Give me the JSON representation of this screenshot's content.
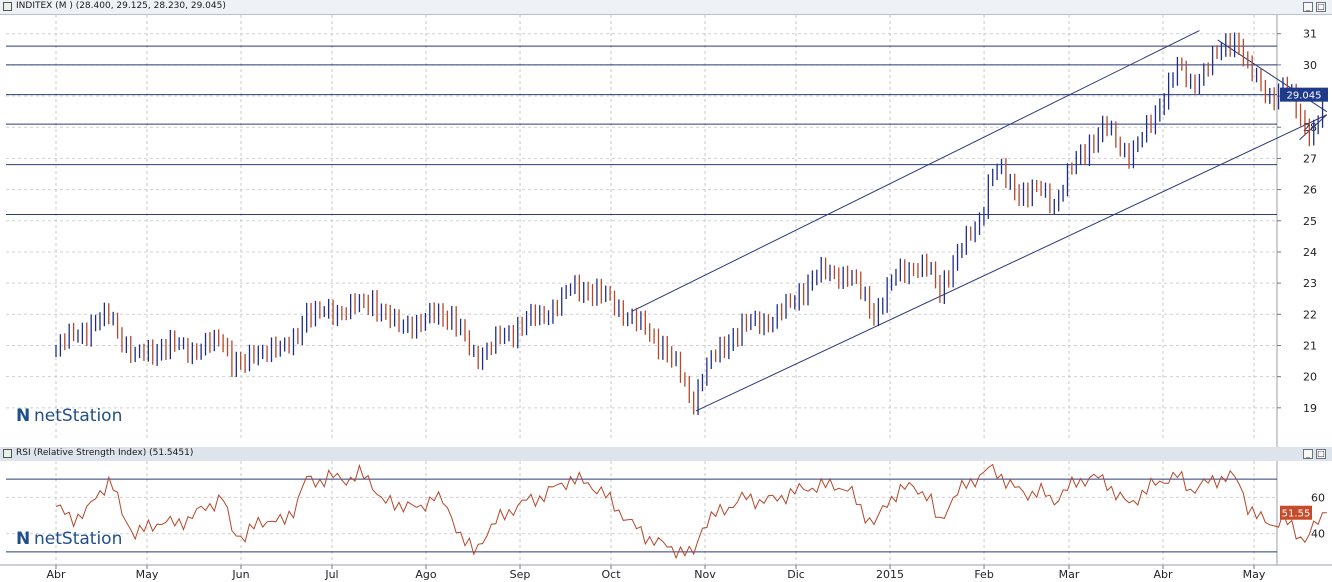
{
  "main_panel": {
    "title": "INDITEX (M ) (28.400, 29.125, 28.230, 29.045)",
    "price_badge": "29.045",
    "watermark": "netStation",
    "colors": {
      "up": "#1f2d8a",
      "down": "#b5472a",
      "hline": "#2b3a7a",
      "badge_bg": "#1f3a8a"
    }
  },
  "rsi_panel": {
    "title": "RSI (Relative Strength Index) (51.5451)",
    "value_badge": "51.55",
    "watermark": "netStation",
    "colors": {
      "line": "#b5472a",
      "badge_bg": "#c64b2a"
    }
  },
  "chart_data": [
    {
      "type": "candlestick",
      "title": "INDITEX (M ) (28.400, 29.125, 28.230, 29.045)",
      "ylim": [
        18,
        31.6
      ],
      "y_ticks": [
        19,
        20,
        21,
        22,
        23,
        24,
        25,
        26,
        27,
        28,
        29,
        30,
        31
      ],
      "x_labels": [
        "Abr",
        "May",
        "Jun",
        "Jul",
        "Ago",
        "Sep",
        "Oct",
        "Nov",
        "Dic",
        "2015",
        "Feb",
        "Mar",
        "Abr",
        "May"
      ],
      "x_label_days": [
        0,
        30,
        61,
        91,
        122,
        153,
        183,
        214,
        244,
        275,
        306,
        334,
        365,
        395
      ],
      "last_close": 29.045,
      "horizontal_lines": [
        30.6,
        30.0,
        29.045,
        28.1,
        26.8,
        25.2
      ],
      "trendlines": [
        {
          "name": "channel-upper",
          "from": [
            190,
            22.1
          ],
          "to": [
            377,
            31.1
          ]
        },
        {
          "name": "channel-lower",
          "from": [
            211,
            18.9
          ],
          "to": [
            419,
            28.4
          ]
        },
        {
          "name": "wedge-top",
          "from": [
            383,
            30.8
          ],
          "to": [
            419,
            28.5
          ]
        },
        {
          "name": "wedge-bottom",
          "from": [
            410,
            27.6
          ],
          "to": [
            419,
            28.4
          ]
        }
      ],
      "close_path": [
        [
          0,
          20.9
        ],
        [
          5,
          21.3
        ],
        [
          10,
          21.5
        ],
        [
          15,
          21.8
        ],
        [
          18,
          22.0
        ],
        [
          22,
          21.2
        ],
        [
          26,
          20.6
        ],
        [
          30,
          20.8
        ],
        [
          35,
          20.9
        ],
        [
          40,
          21.0
        ],
        [
          45,
          20.9
        ],
        [
          50,
          21.0
        ],
        [
          55,
          21.2
        ],
        [
          58,
          20.5
        ],
        [
          62,
          20.3
        ],
        [
          66,
          20.8
        ],
        [
          70,
          21.0
        ],
        [
          75,
          20.8
        ],
        [
          79,
          21.3
        ],
        [
          82,
          22.0
        ],
        [
          86,
          21.9
        ],
        [
          90,
          22.2
        ],
        [
          95,
          22.1
        ],
        [
          100,
          22.3
        ],
        [
          104,
          22.5
        ],
        [
          108,
          21.9
        ],
        [
          112,
          21.7
        ],
        [
          116,
          21.8
        ],
        [
          120,
          21.6
        ],
        [
          125,
          22.1
        ],
        [
          130,
          21.9
        ],
        [
          134,
          21.3
        ],
        [
          138,
          20.7
        ],
        [
          142,
          20.9
        ],
        [
          146,
          21.2
        ],
        [
          150,
          21.4
        ],
        [
          155,
          21.8
        ],
        [
          160,
          21.9
        ],
        [
          165,
          22.4
        ],
        [
          170,
          22.8
        ],
        [
          175,
          22.8
        ],
        [
          180,
          22.6
        ],
        [
          186,
          22.2
        ],
        [
          190,
          21.9
        ],
        [
          195,
          21.4
        ],
        [
          200,
          21.0
        ],
        [
          205,
          20.2
        ],
        [
          210,
          19.2
        ],
        [
          213,
          20.1
        ],
        [
          217,
          20.6
        ],
        [
          222,
          21.2
        ],
        [
          227,
          21.6
        ],
        [
          232,
          21.8
        ],
        [
          237,
          21.9
        ],
        [
          242,
          22.3
        ],
        [
          247,
          22.9
        ],
        [
          252,
          23.3
        ],
        [
          257,
          23.4
        ],
        [
          262,
          23.2
        ],
        [
          266,
          22.6
        ],
        [
          270,
          22.0
        ],
        [
          274,
          22.7
        ],
        [
          278,
          23.4
        ],
        [
          283,
          23.6
        ],
        [
          288,
          23.4
        ],
        [
          291,
          22.7
        ],
        [
          295,
          23.5
        ],
        [
          300,
          24.3
        ],
        [
          305,
          25.2
        ],
        [
          308,
          26.5
        ],
        [
          311,
          26.6
        ],
        [
          315,
          26.1
        ],
        [
          320,
          25.8
        ],
        [
          325,
          26.0
        ],
        [
          329,
          25.6
        ],
        [
          333,
          26.3
        ],
        [
          337,
          27.0
        ],
        [
          342,
          27.6
        ],
        [
          346,
          28.0
        ],
        [
          350,
          27.5
        ],
        [
          354,
          27.2
        ],
        [
          358,
          27.6
        ],
        [
          362,
          28.3
        ],
        [
          366,
          29.2
        ],
        [
          370,
          29.9
        ],
        [
          374,
          29.4
        ],
        [
          378,
          29.8
        ],
        [
          383,
          30.3
        ],
        [
          387,
          30.8
        ],
        [
          390,
          30.7
        ],
        [
          393,
          29.8
        ],
        [
          397,
          29.4
        ],
        [
          401,
          29.0
        ],
        [
          405,
          29.3
        ],
        [
          409,
          28.6
        ],
        [
          412,
          28.0
        ],
        [
          415,
          27.8
        ],
        [
          419,
          29.045
        ]
      ]
    },
    {
      "type": "line",
      "title": "RSI (Relative Strength Index) (51.5451)",
      "ylim": [
        25,
        80
      ],
      "y_ticks": [
        40,
        60
      ],
      "guide_levels": [
        30,
        70
      ],
      "last_value": 51.55,
      "series": [
        {
          "values": [
            [
              0,
              55
            ],
            [
              5,
              48
            ],
            [
              10,
              52
            ],
            [
              14,
              62
            ],
            [
              18,
              70
            ],
            [
              22,
              50
            ],
            [
              26,
              40
            ],
            [
              30,
              43
            ],
            [
              35,
              47
            ],
            [
              40,
              45
            ],
            [
              45,
              50
            ],
            [
              50,
              55
            ],
            [
              55,
              60
            ],
            [
              58,
              42
            ],
            [
              62,
              38
            ],
            [
              66,
              45
            ],
            [
              70,
              48
            ],
            [
              75,
              46
            ],
            [
              79,
              55
            ],
            [
              82,
              70
            ],
            [
              86,
              68
            ],
            [
              90,
              72
            ],
            [
              95,
              69
            ],
            [
              100,
              73
            ],
            [
              104,
              68
            ],
            [
              108,
              58
            ],
            [
              112,
              55
            ],
            [
              116,
              57
            ],
            [
              120,
              52
            ],
            [
              125,
              63
            ],
            [
              130,
              50
            ],
            [
              134,
              38
            ],
            [
              138,
              29
            ],
            [
              142,
              41
            ],
            [
              146,
              48
            ],
            [
              150,
              53
            ],
            [
              155,
              58
            ],
            [
              160,
              60
            ],
            [
              165,
              66
            ],
            [
              170,
              70
            ],
            [
              175,
              68
            ],
            [
              180,
              63
            ],
            [
              186,
              52
            ],
            [
              190,
              45
            ],
            [
              195,
              38
            ],
            [
              200,
              34
            ],
            [
              205,
              31
            ],
            [
              210,
              28
            ],
            [
              213,
              44
            ],
            [
              217,
              50
            ],
            [
              222,
              55
            ],
            [
              227,
              60
            ],
            [
              232,
              58
            ],
            [
              237,
              59
            ],
            [
              242,
              62
            ],
            [
              247,
              65
            ],
            [
              252,
              66
            ],
            [
              257,
              67
            ],
            [
              262,
              63
            ],
            [
              266,
              52
            ],
            [
              270,
              45
            ],
            [
              274,
              57
            ],
            [
              278,
              64
            ],
            [
              283,
              66
            ],
            [
              288,
              60
            ],
            [
              291,
              45
            ],
            [
              295,
              58
            ],
            [
              300,
              67
            ],
            [
              305,
              72
            ],
            [
              308,
              76
            ],
            [
              311,
              73
            ],
            [
              315,
              66
            ],
            [
              320,
              62
            ],
            [
              325,
              63
            ],
            [
              329,
              58
            ],
            [
              333,
              64
            ],
            [
              337,
              69
            ],
            [
              342,
              71
            ],
            [
              346,
              69
            ],
            [
              350,
              61
            ],
            [
              354,
              56
            ],
            [
              358,
              62
            ],
            [
              362,
              67
            ],
            [
              366,
              70
            ],
            [
              370,
              72
            ],
            [
              374,
              64
            ],
            [
              378,
              67
            ],
            [
              383,
              70
            ],
            [
              387,
              72
            ],
            [
              390,
              68
            ],
            [
              393,
              55
            ],
            [
              397,
              48
            ],
            [
              401,
              45
            ],
            [
              405,
              48
            ],
            [
              409,
              40
            ],
            [
              412,
              37
            ],
            [
              415,
              44
            ],
            [
              419,
              51.55
            ]
          ]
        }
      ]
    }
  ]
}
